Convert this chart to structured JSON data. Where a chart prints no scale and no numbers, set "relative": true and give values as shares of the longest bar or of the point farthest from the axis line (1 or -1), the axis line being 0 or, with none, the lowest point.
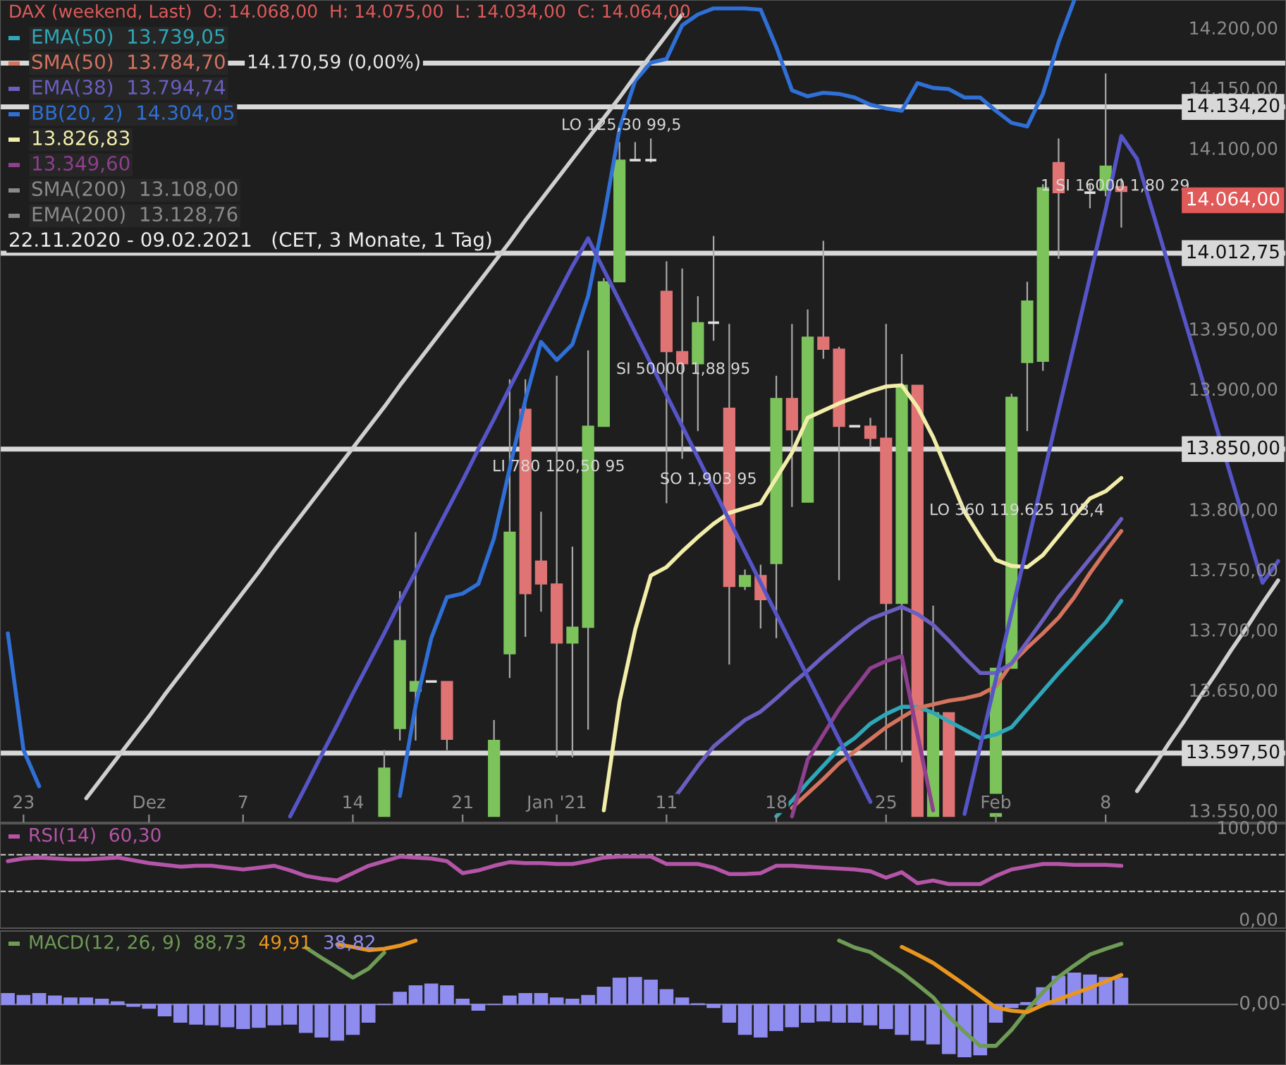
{
  "chart_data": [
    {
      "type": "candlestick",
      "title": "DAX (weekend, Last)  O: 14.068,00  H: 14.075,00  L: 14.034,00  C: 14.064,00",
      "subtitle": "22.11.2020 - 09.02.2021   (CET, 3 Monate, 1 Tag)",
      "categories": [
        null,
        "23",
        null,
        null,
        null,
        null,
        null,
        null,
        null,
        "Dez",
        null,
        null,
        null,
        null,
        null,
        "7",
        null,
        null,
        null,
        null,
        null,
        null,
        "14",
        null,
        null,
        null,
        null,
        null,
        null,
        "21",
        null,
        null,
        null,
        null,
        null,
        "Jan '21",
        null,
        null,
        null,
        null,
        null,
        null,
        "11",
        null,
        null,
        null,
        null,
        null,
        null,
        "18",
        null,
        null,
        null,
        null,
        null,
        null,
        "25",
        null,
        null,
        null,
        null,
        null,
        null,
        "Feb",
        null,
        null,
        null,
        null,
        null,
        null,
        "8",
        null,
        null,
        null,
        null,
        null,
        null,
        null,
        null,
        null,
        null,
        null
      ],
      "ohlc": [
        null,
        null,
        null,
        null,
        null,
        null,
        null,
        null,
        null,
        null,
        null,
        null,
        null,
        null,
        null,
        null,
        null,
        null,
        null,
        null,
        null,
        null,
        null,
        null,
        [
          13545,
          13600,
          13545,
          13585
        ],
        [
          13618,
          13732,
          13608,
          13691
        ],
        [
          13649,
          13781,
          13608,
          13657
        ],
        [
          13657,
          13657,
          13657,
          13657
        ],
        [
          13657,
          13657,
          13600,
          13609
        ],
        null,
        null,
        [
          13545,
          13625,
          13545,
          13608
        ],
        [
          13680,
          13908,
          13660,
          13781
        ],
        [
          13883,
          13908,
          13694,
          13730
        ],
        [
          13757,
          13798,
          13715,
          13738
        ],
        [
          13738,
          13911,
          13594,
          13689
        ],
        [
          13689,
          13769,
          13594,
          13702
        ],
        [
          13702,
          13932,
          13617,
          13869
        ],
        [
          13869,
          13992,
          13869,
          13989
        ],
        [
          13989,
          14105,
          13989,
          14090
        ],
        [
          14090,
          14105,
          14090,
          14090
        ],
        [
          14090,
          14108,
          14088,
          14090
        ],
        [
          13981,
          14006,
          13805,
          13931
        ],
        [
          13931,
          14000,
          13842,
          13921
        ],
        [
          13921,
          13977,
          13865,
          13955
        ],
        [
          13955,
          14027,
          13940,
          13955
        ],
        [
          13884,
          13954,
          13671,
          13736
        ],
        [
          13736,
          13750,
          13733,
          13745
        ],
        [
          13745,
          13754,
          13701,
          13725
        ],
        [
          13755,
          13911,
          13693,
          13892
        ],
        [
          13892,
          13954,
          13802,
          13866
        ],
        [
          13806,
          13966,
          13806,
          13943
        ],
        [
          13943,
          14023,
          13925,
          13933
        ],
        [
          13933,
          13935,
          13741,
          13869
        ],
        [
          13869,
          13869,
          13869,
          13869
        ],
        [
          13869,
          13876,
          13851,
          13859
        ],
        [
          13859,
          13954,
          13600,
          13722
        ],
        [
          13722,
          13929,
          13590,
          13903
        ],
        [
          13903,
          13903,
          13545,
          13545
        ],
        [
          13545,
          13720,
          13545,
          13631
        ],
        [
          13631,
          13631,
          13545,
          13545
        ],
        null,
        null,
        [
          13545,
          13668,
          13545,
          13668
        ],
        [
          13668,
          13896,
          13668,
          13893
        ],
        [
          13922,
          13989,
          13865,
          13973
        ],
        [
          13923,
          14070,
          13915,
          14067
        ],
        [
          14088,
          14108,
          14008,
          14063
        ],
        null,
        [
          14063,
          14070,
          14050,
          14063
        ],
        [
          14065,
          14162,
          14060,
          14085
        ],
        [
          14068,
          14075,
          14034,
          14064
        ],
        null,
        null,
        null,
        null,
        null,
        null,
        null,
        null,
        null,
        null
      ],
      "series": [
        {
          "type": "line",
          "name": "EMA(50)  13.739,05",
          "color": "#2fa7b8",
          "values": [
            null,
            null,
            null,
            null,
            null,
            null,
            null,
            null,
            null,
            null,
            null,
            null,
            null,
            null,
            null,
            null,
            null,
            null,
            null,
            null,
            null,
            null,
            null,
            null,
            null,
            null,
            null,
            null,
            null,
            null,
            null,
            null,
            null,
            null,
            null,
            null,
            null,
            null,
            null,
            null,
            null,
            null,
            null,
            null,
            null,
            null,
            null,
            null,
            null,
            13545,
            13558,
            13573,
            13587,
            13601,
            13610,
            13622,
            13630,
            13636,
            13636,
            13631,
            13624,
            13617,
            13610,
            13613,
            13619,
            13634,
            13649,
            13664,
            13678,
            13692,
            13706,
            13724,
            null,
            null,
            null,
            null,
            null,
            null,
            null,
            null,
            null,
            null
          ]
        },
        {
          "type": "line",
          "name": "SMA(50)  13.784,70",
          "color": "#d4735e",
          "values": [
            null,
            null,
            null,
            null,
            null,
            null,
            null,
            null,
            null,
            null,
            null,
            null,
            null,
            null,
            null,
            null,
            null,
            null,
            null,
            null,
            null,
            null,
            null,
            null,
            null,
            null,
            null,
            null,
            null,
            null,
            null,
            null,
            null,
            null,
            null,
            null,
            null,
            null,
            null,
            null,
            null,
            null,
            null,
            null,
            null,
            null,
            null,
            null,
            null,
            null,
            13552,
            13564,
            13576,
            13589,
            13599,
            13609,
            13619,
            13627,
            13635,
            13638,
            13641,
            13643,
            13646,
            13653,
            13672,
            13685,
            13697,
            13710,
            13727,
            13747,
            13765,
            13782,
            null,
            null,
            null,
            null,
            null,
            null,
            null,
            null,
            null,
            null
          ]
        },
        {
          "type": "line",
          "name": "EMA(38)  13.794,74",
          "color": "#6a5fc0",
          "values": [
            null,
            null,
            null,
            null,
            null,
            null,
            null,
            null,
            null,
            null,
            null,
            null,
            null,
            null,
            null,
            null,
            null,
            null,
            null,
            null,
            null,
            null,
            null,
            null,
            null,
            null,
            null,
            null,
            null,
            null,
            null,
            null,
            null,
            null,
            null,
            null,
            null,
            null,
            null,
            null,
            null,
            null,
            13552,
            13569,
            13587,
            13603,
            13614,
            13625,
            13632,
            13643,
            13655,
            13666,
            13678,
            13689,
            13700,
            13709,
            13714,
            13719,
            13713,
            13704,
            13691,
            13677,
            13664,
            13664,
            13672,
            13690,
            13708,
            13727,
            13743,
            13759,
            13775,
            13792,
            null,
            null,
            null,
            null,
            null,
            null,
            null,
            null,
            null,
            null
          ]
        },
        {
          "type": "line",
          "name": "BB(20, 2)  14.304,05",
          "color": "#2f6fd6",
          "values": [
            13697,
            13600,
            13570,
            null,
            null,
            null,
            null,
            null,
            null,
            null,
            null,
            null,
            null,
            null,
            null,
            null,
            null,
            null,
            null,
            null,
            null,
            null,
            null,
            null,
            null,
            13562,
            13637,
            13693,
            13727,
            13730,
            13738,
            13776,
            13834,
            13891,
            13939,
            13924,
            13937,
            13977,
            14042,
            14116,
            14156,
            14171,
            14174,
            14202,
            14211,
            14216,
            14216,
            14216,
            14215,
            14184,
            14148,
            14143,
            14146,
            14145,
            14142,
            14136,
            14133,
            14131,
            14154,
            14150,
            14149,
            14142,
            14142,
            14131,
            14121,
            14118,
            14145,
            14188,
            14223,
            null,
            null,
            null,
            null,
            null,
            null,
            null,
            null,
            null,
            null,
            null,
            null,
            null
          ]
        },
        {
          "type": "line",
          "name": "13.826,83",
          "color": "#f2eeaa",
          "values": [
            null,
            null,
            null,
            null,
            null,
            null,
            null,
            null,
            null,
            null,
            null,
            null,
            null,
            null,
            null,
            null,
            null,
            null,
            null,
            null,
            null,
            null,
            null,
            null,
            null,
            null,
            null,
            null,
            null,
            null,
            null,
            null,
            null,
            null,
            null,
            null,
            null,
            null,
            13550,
            13640,
            13700,
            13745,
            13752,
            13765,
            13777,
            13788,
            13797,
            13801,
            13805,
            13826,
            13847,
            13876,
            13882,
            13888,
            13893,
            13898,
            13902,
            13903,
            13885,
            13860,
            13829,
            13798,
            13777,
            13758,
            13753,
            13752,
            13762,
            13778,
            13794,
            13809,
            13815,
            13826,
            null,
            null,
            null,
            null,
            null,
            null,
            null,
            null,
            null,
            null
          ]
        },
        {
          "type": "line",
          "name": "13.349,60",
          "color": "#8e3f8e",
          "values": [
            null,
            null,
            null,
            null,
            null,
            null,
            null,
            null,
            null,
            null,
            null,
            null,
            null,
            null,
            null,
            null,
            null,
            null,
            null,
            null,
            null,
            null,
            null,
            null,
            null,
            null,
            null,
            null,
            null,
            null,
            null,
            null,
            null,
            null,
            null,
            null,
            null,
            null,
            null,
            null,
            null,
            null,
            null,
            null,
            null,
            null,
            null,
            null,
            null,
            null,
            13545,
            13592,
            13613,
            13634,
            13651,
            13668,
            13674,
            13678,
            13613,
            13550,
            null,
            null,
            null,
            null,
            null,
            null,
            null,
            null,
            null,
            null,
            null,
            null,
            null,
            null,
            null,
            null,
            null,
            null,
            null,
            null,
            null,
            null
          ]
        },
        {
          "type": "line",
          "color": "#5555c8",
          "values": [
            null,
            null,
            null,
            null,
            null,
            null,
            null,
            null,
            null,
            null,
            null,
            null,
            null,
            null,
            null,
            null,
            null,
            null,
            13545,
            13570,
            13596,
            13621,
            13647,
            13672,
            13697,
            13723,
            13748,
            13774,
            13799,
            13824,
            13850,
            13875,
            13901,
            13926,
            13952,
            13977,
            14002,
            14025,
            13999,
            13973,
            13947,
            13921,
            13895,
            13869,
            13843,
            13817,
            13791,
            13765,
            13739,
            13713,
            13687,
            13661,
            13635,
            13609,
            13583,
            13557,
            null,
            null,
            null,
            null,
            null,
            13547,
            13603,
            13659,
            13714,
            13770,
            13826,
            13882,
            13937,
            13993,
            14049,
            14110,
            14091,
            14047,
            14003,
            13959,
            13915,
            13871,
            13827,
            13783,
            13739,
            13757
          ]
        },
        {
          "type": "line",
          "color": "#cfcfcf",
          "values": [
            null,
            null,
            null,
            null,
            null,
            13560,
            13577,
            13594,
            13611,
            13628,
            13646,
            13663,
            13680,
            13697,
            13714,
            13731,
            13748,
            13766,
            13783,
            13800,
            13817,
            13834,
            13851,
            13868,
            13885,
            13903,
            13920,
            13937,
            13954,
            13971,
            13988,
            14005,
            14022,
            14040,
            14057,
            14074,
            14091,
            14108,
            14125,
            14142,
            14160,
            14177,
            14194,
            14211,
            null,
            null,
            null,
            null,
            null,
            null,
            null,
            null,
            null,
            null,
            null,
            null,
            null,
            null,
            null,
            null,
            null,
            null,
            null,
            null,
            null,
            null,
            null,
            null,
            null,
            null,
            null,
            null,
            13566,
            13585,
            13605,
            13624,
            13644,
            13663,
            13683,
            13702,
            13722,
            13741
          ]
        }
      ],
      "ylim": [
        13540,
        14223
      ],
      "yticks": [
        {
          "value": 14200,
          "label": "14.200,00"
        },
        {
          "value": 14150,
          "label": "14.150,00"
        },
        {
          "value": 14100,
          "label": "14.100,00"
        },
        {
          "value": 13950,
          "label": "13.950,00"
        },
        {
          "value": 13900,
          "label": "13.900,00"
        },
        {
          "value": 13800,
          "label": "13.800,00"
        },
        {
          "value": 13750,
          "label": "13.750,00"
        },
        {
          "value": 13700,
          "label": "13.700,00"
        },
        {
          "value": 13650,
          "label": "13.650,00"
        },
        {
          "value": 13550,
          "label": "13.550,00"
        }
      ],
      "ref_lines": [
        {
          "axis": "y",
          "value": 14170.59,
          "label": "14.170,59 (0,00%)",
          "color": "#d8d8d8"
        },
        {
          "axis": "y",
          "value": 14134.2,
          "label": "14.134,20",
          "color": "#d8d8d8"
        },
        {
          "axis": "y",
          "value": 14012.75,
          "label": "14.012,75",
          "color": "#d8d8d8"
        },
        {
          "axis": "y",
          "value": 13850,
          "label": "13.850,00",
          "color": "#d8d8d8"
        },
        {
          "axis": "y",
          "value": 13597.5,
          "label": "13.597,50",
          "color": "#d8d8d8"
        }
      ],
      "annotations": [
        "SMA(200)  13.108,00",
        "EMA(200)  13.128,76",
        "14.064,00",
        "LO 125,30 99,5",
        "LI 780 120,50 95",
        "SI 50000 1,88 95",
        "SO 1,903 95",
        "LO 360 119.625 103,4",
        "1 SI 16000 1,80 29"
      ],
      "legend": "top left"
    },
    {
      "type": "line",
      "categories": [
        null,
        null,
        null,
        null,
        null,
        null,
        null,
        null,
        null,
        null,
        null,
        null,
        null,
        null,
        null,
        null,
        null,
        null,
        null,
        null,
        null,
        null,
        null,
        null,
        null,
        null,
        null,
        null,
        null,
        null,
        null,
        null,
        null,
        null,
        null,
        null,
        null,
        null,
        null,
        null,
        null,
        null,
        null,
        null,
        null,
        null,
        null,
        null,
        null,
        null,
        null,
        null,
        null,
        null,
        null,
        null,
        null,
        null,
        null,
        null,
        null,
        null,
        null,
        null,
        null,
        null,
        null,
        null,
        null,
        null,
        null,
        null,
        null,
        null,
        null,
        null,
        null,
        null,
        null,
        null,
        null,
        null
      ],
      "series": [
        {
          "name": "RSI(14)  60,30",
          "color": "#b455a8",
          "values": [
            63,
            66,
            67,
            66,
            65,
            65,
            66,
            67,
            64,
            61,
            59,
            57,
            58,
            58,
            56,
            54,
            56,
            58,
            53,
            47,
            44,
            42,
            50,
            58,
            63,
            68,
            67,
            66,
            63,
            50,
            53,
            58,
            62,
            61,
            61,
            60,
            60,
            63,
            67,
            68,
            68,
            68,
            60,
            60,
            60,
            56,
            49,
            49,
            50,
            58,
            58,
            57,
            56,
            55,
            54,
            52,
            45,
            51,
            39,
            42,
            38,
            38,
            38,
            47,
            54,
            57,
            60,
            60,
            59,
            59,
            59,
            58,
            null,
            null,
            null,
            null,
            null,
            null,
            null,
            null,
            null,
            null
          ]
        }
      ],
      "ylim": [
        -10,
        103.8
      ],
      "yticks": [
        {
          "value": 100,
          "label": "100,00"
        },
        {
          "value": 0,
          "label": "0,00"
        }
      ],
      "ref_lines": [
        {
          "axis": "y",
          "value": 70,
          "color": "#bbbbbb",
          "line_style": "dashed"
        },
        {
          "axis": "y",
          "value": 30,
          "color": "#bbbbbb",
          "line_style": "dashed"
        }
      ],
      "tick_labels": "y",
      "legend": "top left"
    },
    {
      "type": "bar",
      "relative": true,
      "categories": [
        null,
        null,
        null,
        null,
        null,
        null,
        null,
        null,
        null,
        null,
        null,
        null,
        null,
        null,
        null,
        null,
        null,
        null,
        null,
        null,
        null,
        null,
        null,
        null,
        null,
        null,
        null,
        null,
        null,
        null,
        null,
        null,
        null,
        null,
        null,
        null,
        null,
        null,
        null,
        null,
        null,
        null,
        null,
        null,
        null,
        null,
        null,
        null,
        null,
        null,
        null,
        null,
        null,
        null,
        null,
        null,
        null,
        null,
        null,
        null,
        null,
        null,
        null,
        null,
        null,
        null,
        null,
        null,
        null,
        null,
        null,
        null,
        null,
        null,
        null,
        null,
        null,
        null,
        null,
        null,
        null,
        null
      ],
      "series": [
        {
          "type": "line",
          "name": "MACD(12, 26, 9)  88,73",
          "color": "#6e9b55",
          "values": [
            null,
            null,
            null,
            null,
            null,
            null,
            null,
            null,
            null,
            null,
            null,
            null,
            null,
            null,
            null,
            null,
            null,
            null,
            null,
            0.89,
            0.73,
            0.58,
            0.42,
            0.56,
            0.81,
            null,
            null,
            null,
            null,
            null,
            null,
            null,
            null,
            null,
            null,
            null,
            null,
            null,
            null,
            null,
            null,
            null,
            null,
            null,
            null,
            null,
            null,
            null,
            null,
            null,
            null,
            null,
            null,
            1.0,
            0.89,
            0.82,
            0.66,
            0.5,
            0.31,
            0.11,
            -0.19,
            -0.43,
            -0.65,
            -0.65,
            -0.4,
            -0.09,
            0.19,
            0.43,
            0.61,
            0.78,
            0.87,
            0.95,
            null,
            null,
            null,
            null,
            null,
            null,
            null,
            null,
            null,
            null
          ]
        },
        {
          "type": "line",
          "name": "49,91",
          "color": "#e8961e",
          "values": [
            null,
            null,
            null,
            null,
            null,
            null,
            null,
            null,
            null,
            null,
            null,
            null,
            null,
            null,
            null,
            null,
            null,
            null,
            null,
            null,
            null,
            0.94,
            0.9,
            0.85,
            0.87,
            0.92,
            1.0,
            null,
            null,
            null,
            null,
            null,
            null,
            null,
            null,
            null,
            null,
            null,
            null,
            null,
            null,
            null,
            null,
            null,
            null,
            null,
            null,
            null,
            null,
            null,
            null,
            null,
            null,
            null,
            null,
            null,
            null,
            0.9,
            0.78,
            0.65,
            0.48,
            0.31,
            0.13,
            -0.05,
            -0.1,
            -0.12,
            -0.01,
            0.08,
            0.17,
            0.26,
            0.36,
            0.46,
            null,
            null,
            null,
            null,
            null,
            null,
            null,
            null,
            null,
            null
          ]
        },
        {
          "type": "bar",
          "name": "38,82",
          "color": "#8f8cf0",
          "values": [
            0.17,
            0.14,
            0.17,
            0.13,
            0.1,
            0.1,
            0.08,
            0.04,
            -0.03,
            -0.06,
            -0.18,
            -0.28,
            -0.31,
            -0.32,
            -0.35,
            -0.38,
            -0.36,
            -0.32,
            -0.31,
            -0.44,
            -0.51,
            -0.56,
            -0.47,
            -0.28,
            0.0,
            0.19,
            0.29,
            0.32,
            0.29,
            0.08,
            -0.09,
            0.0,
            0.13,
            0.17,
            0.17,
            0.1,
            0.08,
            0.14,
            0.27,
            0.41,
            0.42,
            0.38,
            0.23,
            0.1,
            0.01,
            -0.05,
            -0.28,
            -0.47,
            -0.51,
            -0.41,
            -0.35,
            -0.28,
            -0.26,
            -0.28,
            -0.28,
            -0.32,
            -0.38,
            -0.47,
            -0.56,
            -0.62,
            -0.77,
            -0.82,
            -0.79,
            -0.28,
            -0.05,
            0.03,
            0.26,
            0.44,
            0.49,
            0.46,
            0.42,
            0.41,
            null,
            null,
            null,
            null,
            null,
            null,
            null,
            null,
            null,
            null
          ]
        }
      ],
      "annotations": [
        "0,00"
      ],
      "tick_labels": false,
      "legend": "top left"
    }
  ]
}
